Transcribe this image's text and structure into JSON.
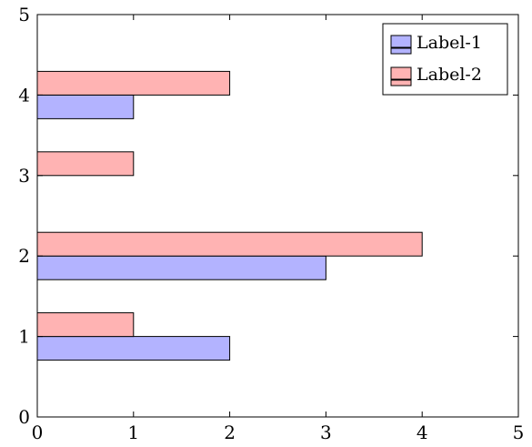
{
  "chart_data": {
    "type": "bar",
    "orientation": "horizontal",
    "categories": [
      1,
      2,
      3,
      4
    ],
    "series": [
      {
        "name": "Label-1",
        "values": [
          2,
          3,
          0,
          1
        ],
        "fill": "#b3b3ff",
        "stroke": "#000000"
      },
      {
        "name": "Label-2",
        "values": [
          1,
          4,
          1,
          2
        ],
        "fill": "#ffb3b3",
        "stroke": "#000000"
      }
    ],
    "xlim": [
      0,
      5
    ],
    "ylim": [
      0,
      5
    ],
    "xticks": [
      "0",
      "1",
      "2",
      "3",
      "4",
      "5"
    ],
    "yticks": [
      "0",
      "1",
      "2",
      "3",
      "4",
      "5"
    ],
    "grid": false,
    "legend_position": "top-right"
  }
}
